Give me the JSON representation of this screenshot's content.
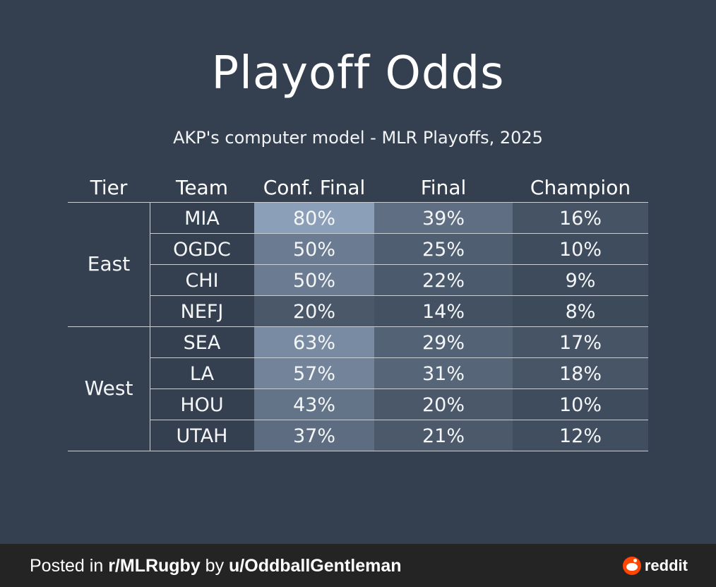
{
  "title": "Playoff Odds",
  "subtitle": "AKP's computer model - MLR Playoffs, 2025",
  "headers": [
    "Tier",
    "Team",
    "Conf. Final",
    "Final",
    "Champion"
  ],
  "tiers": [
    {
      "name": "East",
      "teams": [
        {
          "team": "MIA",
          "conf_final": "80%",
          "final": "39%",
          "champion": "16%"
        },
        {
          "team": "OGDC",
          "conf_final": "50%",
          "final": "25%",
          "champion": "10%"
        },
        {
          "team": "CHI",
          "conf_final": "50%",
          "final": "22%",
          "champion": "9%"
        },
        {
          "team": "NEFJ",
          "conf_final": "20%",
          "final": "14%",
          "champion": "8%"
        }
      ]
    },
    {
      "name": "West",
      "teams": [
        {
          "team": "SEA",
          "conf_final": "63%",
          "final": "29%",
          "champion": "17%"
        },
        {
          "team": "LA",
          "conf_final": "57%",
          "final": "31%",
          "champion": "18%"
        },
        {
          "team": "HOU",
          "conf_final": "43%",
          "final": "20%",
          "champion": "10%"
        },
        {
          "team": "UTAH",
          "conf_final": "37%",
          "final": "21%",
          "champion": "12%"
        }
      ]
    }
  ],
  "colors": {
    "background": "#344050",
    "heat_low": "#344050",
    "heat_high": "#8c9fb8",
    "footer": "#242424",
    "reddit_orange": "#ff4500"
  },
  "footer": {
    "posted_in": "Posted in ",
    "subreddit": "r/MLRugby",
    "by": " by ",
    "user": "u/OddballGentleman",
    "brand": "reddit",
    "brand_icon": "reddit-snoo-icon"
  }
}
